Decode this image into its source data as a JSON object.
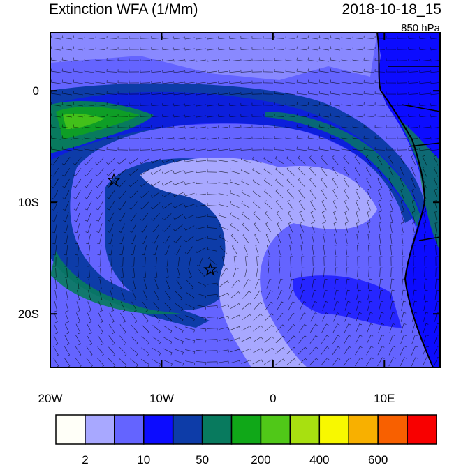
{
  "header": {
    "title": "Extinction WFA (1/Mm)",
    "date": "2018-10-18_15",
    "level": "850 hPa"
  },
  "map": {
    "lon_range": [
      -20,
      15
    ],
    "lat_range": [
      5.2,
      -24.8
    ],
    "lon_ticks": [
      {
        "value": -20,
        "label": "20W"
      },
      {
        "value": -10,
        "label": "10W"
      },
      0,
      {
        "value": 10,
        "label": "10E"
      }
    ],
    "lat_ticks": [
      0,
      {
        "value": -10,
        "label": "10S"
      },
      {
        "value": -20,
        "label": "20S"
      }
    ]
  },
  "colorbar": {
    "colors": [
      "#fffff8",
      "#a8a8ff",
      "#6464ff",
      "#0c0cff",
      "#0d3ca8",
      "#087a5e",
      "#10a818",
      "#50c818",
      "#a8e010",
      "#f8f800",
      "#f8b000",
      "#f86000",
      "#f80000"
    ],
    "labels": [
      "2",
      "10",
      "50",
      "200",
      "400",
      "600"
    ]
  }
}
